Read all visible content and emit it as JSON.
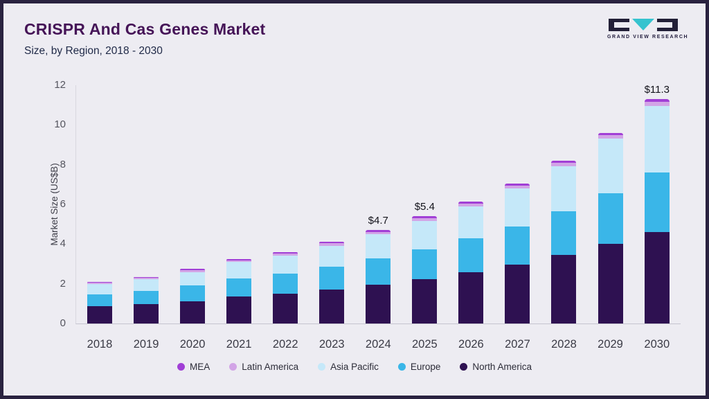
{
  "header": {
    "title": "CRISPR And Cas Genes Market",
    "subtitle": "Size, by Region, 2018 - 2030"
  },
  "logo": {
    "text": "GRAND VIEW RESEARCH",
    "mark_dark_color": "#232038",
    "mark_teal_color": "#36c3cf"
  },
  "chart_data": {
    "type": "bar",
    "stacked": true,
    "title": "CRISPR And Cas Genes Market Size, by Region, 2018 - 2030",
    "xlabel": "",
    "ylabel": "Market Size (US$B)",
    "ylim": [
      0,
      12
    ],
    "yticks": [
      0,
      2,
      4,
      6,
      8,
      10,
      12
    ],
    "grid": false,
    "legend_position": "bottom",
    "categories": [
      "2018",
      "2019",
      "2020",
      "2021",
      "2022",
      "2023",
      "2024",
      "2025",
      "2026",
      "2027",
      "2028",
      "2029",
      "2030"
    ],
    "series": [
      {
        "name": "North America",
        "color": "#2e1151",
        "values": [
          0.88,
          0.98,
          1.12,
          1.35,
          1.5,
          1.72,
          1.97,
          2.25,
          2.58,
          2.98,
          3.45,
          4.0,
          4.6
        ]
      },
      {
        "name": "Europe",
        "color": "#3ab6e8",
        "values": [
          0.6,
          0.67,
          0.8,
          0.93,
          1.0,
          1.15,
          1.3,
          1.5,
          1.7,
          1.92,
          2.2,
          2.55,
          3.0
        ]
      },
      {
        "name": "Asia Pacific",
        "color": "#c5e8f9",
        "values": [
          0.5,
          0.57,
          0.68,
          0.81,
          0.93,
          1.05,
          1.23,
          1.43,
          1.63,
          1.9,
          2.28,
          2.75,
          3.35
        ]
      },
      {
        "name": "Latin America",
        "color": "#d2a4e6",
        "values": [
          0.07,
          0.08,
          0.09,
          0.1,
          0.1,
          0.11,
          0.12,
          0.13,
          0.14,
          0.15,
          0.16,
          0.18,
          0.2
        ]
      },
      {
        "name": "MEA",
        "color": "#a13fd6",
        "values": [
          0.05,
          0.05,
          0.06,
          0.06,
          0.07,
          0.07,
          0.08,
          0.09,
          0.1,
          0.1,
          0.11,
          0.12,
          0.15
        ]
      }
    ],
    "totals": [
      2.1,
      2.35,
      2.75,
      3.25,
      3.6,
      4.1,
      4.7,
      5.4,
      6.15,
      7.05,
      8.2,
      9.6,
      11.3
    ],
    "annotations": [
      {
        "category": "2024",
        "label": "$4.7"
      },
      {
        "category": "2025",
        "label": "$5.4"
      },
      {
        "category": "2030",
        "label": "$11.3"
      }
    ],
    "legend": [
      "MEA",
      "Latin America",
      "Asia Pacific",
      "Europe",
      "North America"
    ]
  }
}
